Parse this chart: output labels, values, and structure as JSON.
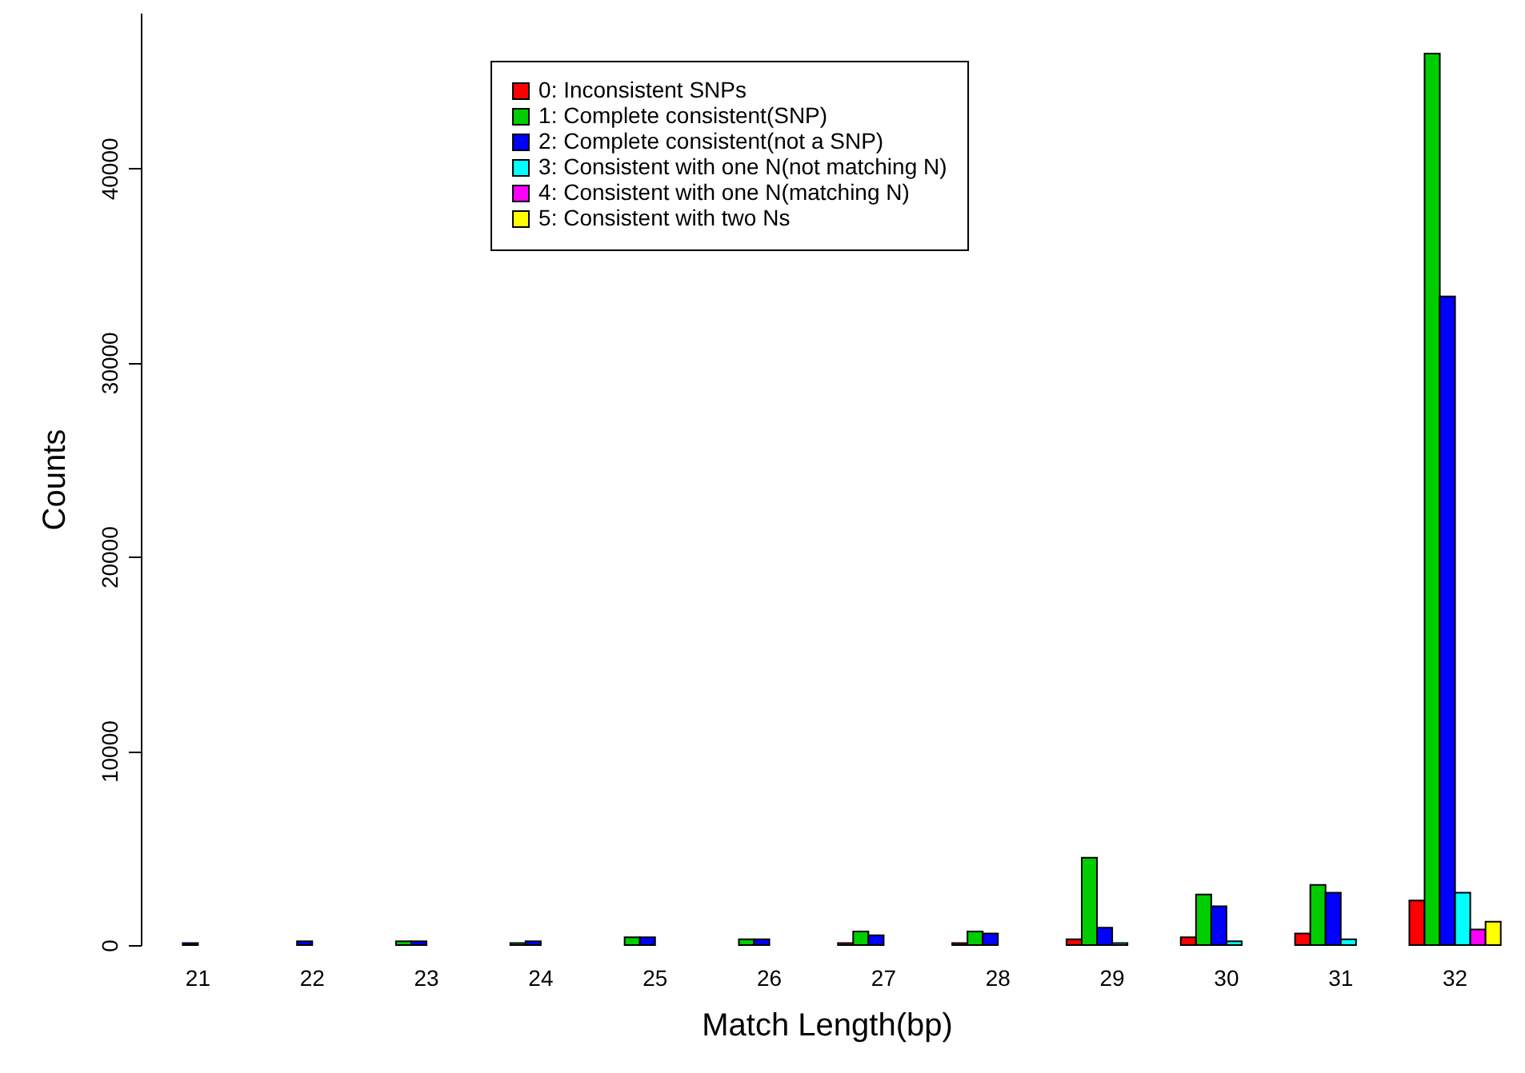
{
  "chart_data": {
    "type": "bar",
    "xlabel": "Match Length(bp)",
    "ylabel": "Counts",
    "categories": [
      "21",
      "22",
      "23",
      "24",
      "25",
      "26",
      "27",
      "28",
      "29",
      "30",
      "31",
      "32"
    ],
    "series": [
      {
        "name": "0: Inconsistent SNPs",
        "color": "#ff0000",
        "values": [
          null,
          null,
          null,
          null,
          null,
          null,
          100,
          100,
          300,
          400,
          600,
          2300
        ]
      },
      {
        "name": "1: Complete consistent(SNP)",
        "color": "#00cd00",
        "values": [
          null,
          null,
          200,
          100,
          400,
          300,
          700,
          700,
          4500,
          2600,
          3100,
          45900
        ]
      },
      {
        "name": "2: Complete consistent(not a SNP)",
        "color": "#0000ff",
        "values": [
          100,
          200,
          200,
          200,
          400,
          300,
          500,
          600,
          900,
          2000,
          2700,
          33400
        ]
      },
      {
        "name": "3: Consistent with one N(not matching N)",
        "color": "#00ffff",
        "values": [
          null,
          null,
          null,
          null,
          null,
          null,
          null,
          null,
          100,
          200,
          300,
          2700
        ]
      },
      {
        "name": "4: Consistent with one N(matching N)",
        "color": "#ff00ff",
        "values": [
          null,
          null,
          null,
          null,
          null,
          null,
          null,
          null,
          null,
          null,
          null,
          800
        ]
      },
      {
        "name": "5: Consistent with two Ns",
        "color": "#ffff00",
        "values": [
          null,
          null,
          null,
          null,
          null,
          null,
          null,
          null,
          null,
          null,
          null,
          1200
        ]
      }
    ],
    "ylim": [
      0,
      48000
    ],
    "yticks": [
      0,
      10000,
      20000,
      30000,
      40000
    ],
    "legend": "top",
    "grid": false
  }
}
